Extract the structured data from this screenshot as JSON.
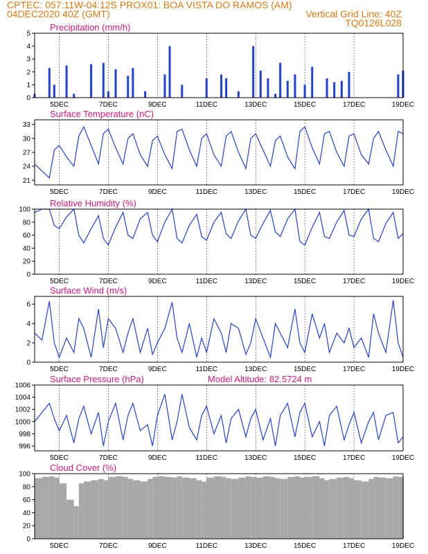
{
  "header": {
    "line1_left": "CPTEC:   057:11W-04:12S   PROX01: BOA VISTA DO RAMOS (AM)",
    "line2_left": "04DEC2020 40Z (GMT)",
    "line2_right": "Vertical Grid Line: 40Z",
    "line3_right": "TQ0126L028"
  },
  "colors": {
    "header": "#e07a10",
    "title": "#e0157a",
    "series": "#1f3fe0",
    "cloud": "#a8a8a8"
  },
  "x_ticks": [
    "5DEC",
    "7DEC",
    "9DEC",
    "11DEC",
    "13DEC",
    "15DEC",
    "17DEC",
    "19DEC"
  ],
  "chart_data": [
    {
      "type": "bar",
      "title": "Precipitation (mm/h)",
      "yticks": [
        "0",
        "1",
        "2",
        "3",
        "4",
        "5"
      ],
      "ylim": [
        0,
        5
      ],
      "x": [
        "4.0DEC",
        "4.3DEC",
        "4.6DEC",
        "4.8DEC",
        "5.0DEC",
        "5.3DEC",
        "5.6DEC",
        "5.8DEC",
        "6.0DEC",
        "6.3DEC",
        "6.5DEC",
        "6.8DEC",
        "7.0DEC",
        "7.3DEC",
        "7.6DEC",
        "7.8DEC",
        "8.0DEC",
        "8.3DEC",
        "8.5DEC",
        "8.8DEC",
        "9.0DEC",
        "9.3DEC",
        "9.5DEC",
        "10.0DEC",
        "10.5DEC",
        "11.0DEC",
        "11.3DEC",
        "11.6DEC",
        "11.8DEC",
        "12.0DEC",
        "12.3DEC",
        "12.6DEC",
        "12.9DEC",
        "13.2DEC",
        "13.5DEC",
        "13.8DEC",
        "14.0DEC",
        "14.3DEC",
        "14.6DEC",
        "15.0DEC",
        "15.3DEC",
        "15.6DEC",
        "15.9DEC",
        "16.2DEC",
        "16.5DEC",
        "16.8DEC",
        "17.0DEC",
        "17.3DEC",
        "17.5DEC",
        "17.8DEC",
        "18.0DEC",
        "18.3DEC",
        "18.5DEC",
        "18.8DEC",
        "19.0DEC"
      ],
      "values": [
        0.3,
        0,
        2.3,
        1.0,
        0,
        2.5,
        0.3,
        0,
        0,
        2.6,
        0,
        2.7,
        0.5,
        2.2,
        0,
        1.7,
        2.3,
        0,
        0.5,
        0,
        0,
        1.8,
        4.0,
        1.0,
        0,
        1.5,
        0,
        1.8,
        1.5,
        0,
        0.5,
        0,
        4.0,
        2.1,
        1.5,
        0.3,
        2.7,
        1.3,
        1.8,
        1.0,
        2.4,
        0,
        1.5,
        1.2,
        1.3,
        2.0,
        0,
        0,
        0,
        0,
        0,
        0,
        0,
        1.8,
        2.1
      ],
      "ylabel": ""
    },
    {
      "type": "line",
      "title": "Surface Temperature (nC)",
      "yticks": [
        "21",
        "24",
        "27",
        "30",
        "33"
      ],
      "ylim": [
        20,
        34
      ],
      "x": [
        4.0,
        4.3,
        4.6,
        4.8,
        5.0,
        5.3,
        5.6,
        5.8,
        6.0,
        6.3,
        6.6,
        6.8,
        7.0,
        7.3,
        7.6,
        7.8,
        8.0,
        8.3,
        8.6,
        8.8,
        9.0,
        9.3,
        9.6,
        9.8,
        10.0,
        10.3,
        10.6,
        10.8,
        11.0,
        11.3,
        11.6,
        11.8,
        12.0,
        12.3,
        12.6,
        12.8,
        13.0,
        13.3,
        13.6,
        13.8,
        14.0,
        14.3,
        14.6,
        14.8,
        15.0,
        15.3,
        15.6,
        15.8,
        16.0,
        16.3,
        16.6,
        16.8,
        17.0,
        17.3,
        17.6,
        17.8,
        18.0,
        18.3,
        18.6,
        18.8,
        19.0
      ],
      "values": [
        24.5,
        23.0,
        21.5,
        27.5,
        28.5,
        26.0,
        24.0,
        30.5,
        32.5,
        28.5,
        24.5,
        31.0,
        32.0,
        28.0,
        24.5,
        30.0,
        31.0,
        26.5,
        24.0,
        29.5,
        30.5,
        26.5,
        23.5,
        31.5,
        32.0,
        27.5,
        24.0,
        30.0,
        31.0,
        26.5,
        24.0,
        30.5,
        31.5,
        27.0,
        23.5,
        30.0,
        31.0,
        27.5,
        24.0,
        29.5,
        30.5,
        26.0,
        23.5,
        31.5,
        32.5,
        28.0,
        24.5,
        31.0,
        31.5,
        27.0,
        24.0,
        30.5,
        31.0,
        26.5,
        24.5,
        30.0,
        31.5,
        27.5,
        24.0,
        31.5,
        31.0
      ],
      "ylabel": ""
    },
    {
      "type": "line",
      "title": "Relative Humidity (%)",
      "yticks": [
        "0",
        "20",
        "40",
        "60",
        "80",
        "100"
      ],
      "ylim": [
        0,
        100
      ],
      "x": [
        4.0,
        4.3,
        4.6,
        4.8,
        5.0,
        5.3,
        5.6,
        5.8,
        6.0,
        6.3,
        6.6,
        6.8,
        7.0,
        7.3,
        7.6,
        7.8,
        8.0,
        8.3,
        8.6,
        8.8,
        9.0,
        9.3,
        9.6,
        9.8,
        10.0,
        10.3,
        10.6,
        10.8,
        11.0,
        11.3,
        11.6,
        11.8,
        12.0,
        12.3,
        12.6,
        12.8,
        13.0,
        13.3,
        13.6,
        13.8,
        14.0,
        14.3,
        14.6,
        14.8,
        15.0,
        15.3,
        15.6,
        15.8,
        16.0,
        16.3,
        16.6,
        16.8,
        17.0,
        17.3,
        17.6,
        17.8,
        18.0,
        18.3,
        18.6,
        18.8,
        19.0
      ],
      "values": [
        95,
        100,
        100,
        75,
        70,
        88,
        100,
        60,
        48,
        70,
        90,
        55,
        45,
        72,
        95,
        60,
        55,
        85,
        95,
        60,
        50,
        80,
        100,
        55,
        48,
        75,
        92,
        58,
        52,
        80,
        95,
        62,
        55,
        82,
        100,
        60,
        55,
        78,
        98,
        65,
        58,
        85,
        100,
        50,
        45,
        72,
        95,
        58,
        55,
        80,
        98,
        60,
        58,
        85,
        100,
        55,
        50,
        78,
        95,
        55,
        62
      ],
      "ylabel": ""
    },
    {
      "type": "line",
      "title": "Surface Wind (m/s)",
      "yticks": [
        "0",
        "2",
        "4",
        "6"
      ],
      "ylim": [
        0,
        6.8
      ],
      "x": [
        4.0,
        4.3,
        4.6,
        4.8,
        5.0,
        5.3,
        5.6,
        5.8,
        6.0,
        6.3,
        6.6,
        6.8,
        7.0,
        7.3,
        7.6,
        7.8,
        8.0,
        8.3,
        8.6,
        8.8,
        9.0,
        9.3,
        9.6,
        9.8,
        10.0,
        10.3,
        10.6,
        10.8,
        11.0,
        11.3,
        11.6,
        11.8,
        12.0,
        12.3,
        12.6,
        12.8,
        13.0,
        13.3,
        13.6,
        13.8,
        14.0,
        14.3,
        14.6,
        14.8,
        15.0,
        15.3,
        15.6,
        15.8,
        16.0,
        16.3,
        16.6,
        16.8,
        17.0,
        17.3,
        17.6,
        17.8,
        18.0,
        18.3,
        18.6,
        18.8,
        19.0
      ],
      "values": [
        3.0,
        2.3,
        6.3,
        2.0,
        0.5,
        2.5,
        1.0,
        4.5,
        3.5,
        0.5,
        5.5,
        1.5,
        4.5,
        3.5,
        1.0,
        3.0,
        4.5,
        1.0,
        3.5,
        0.8,
        2.0,
        3.5,
        6.2,
        2.5,
        1.0,
        4.0,
        0.5,
        2.5,
        1.0,
        4.5,
        3.0,
        1.0,
        4.0,
        3.5,
        0.8,
        2.0,
        4.5,
        2.5,
        0.5,
        4.0,
        3.0,
        1.5,
        5.5,
        2.0,
        1.0,
        5.0,
        2.5,
        4.0,
        1.0,
        3.0,
        2.0,
        3.5,
        1.5,
        2.5,
        0.5,
        5.0,
        3.0,
        1.0,
        6.4,
        2.0,
        0.5
      ],
      "ylabel": ""
    },
    {
      "type": "line",
      "title": "Surface Pressure (hPa)",
      "subtitle": "Model Altitude: 82.5724 m",
      "yticks": [
        "996",
        "998",
        "1000",
        "1002",
        "1004",
        "1006"
      ],
      "ylim": [
        995.2,
        1006
      ],
      "x": [
        4.0,
        4.3,
        4.6,
        4.8,
        5.0,
        5.3,
        5.6,
        5.8,
        6.0,
        6.3,
        6.6,
        6.8,
        7.0,
        7.3,
        7.6,
        7.8,
        8.0,
        8.3,
        8.6,
        8.8,
        9.0,
        9.3,
        9.6,
        9.8,
        10.0,
        10.3,
        10.6,
        10.8,
        11.0,
        11.3,
        11.6,
        11.8,
        12.0,
        12.3,
        12.6,
        12.8,
        13.0,
        13.3,
        13.6,
        13.8,
        14.0,
        14.3,
        14.6,
        14.8,
        15.0,
        15.3,
        15.6,
        15.8,
        16.0,
        16.3,
        16.6,
        16.8,
        17.0,
        17.3,
        17.6,
        17.8,
        18.0,
        18.3,
        18.6,
        18.8,
        19.0
      ],
      "values": [
        1000.0,
        1001.5,
        1003.0,
        1000.5,
        998.5,
        1001.0,
        996.5,
        1000.5,
        1002.5,
        998.0,
        1001.5,
        996.0,
        1000.0,
        1003.0,
        997.0,
        1001.0,
        1003.0,
        998.5,
        999.5,
        996.0,
        1001.0,
        1004.5,
        997.0,
        1000.0,
        1004.5,
        999.0,
        997.0,
        1001.0,
        1002.5,
        998.0,
        1001.0,
        996.5,
        1000.5,
        1002.0,
        997.5,
        1000.5,
        1002.0,
        997.0,
        1000.5,
        996.0,
        1001.0,
        1003.0,
        997.5,
        1001.5,
        1003.0,
        997.5,
        1000.0,
        996.0,
        1001.0,
        1002.5,
        997.0,
        999.5,
        1001.5,
        996.5,
        1000.0,
        1001.5,
        997.0,
        1001.0,
        1001.5,
        996.5,
        997.5
      ],
      "ylabel": ""
    },
    {
      "type": "area",
      "title": "Cloud Cover (%)",
      "yticks": [
        "0",
        "20",
        "40",
        "60",
        "80",
        "100"
      ],
      "ylim": [
        0,
        100
      ],
      "x": [
        4.0,
        4.3,
        4.6,
        4.8,
        5.0,
        5.3,
        5.6,
        5.8,
        6.0,
        6.3,
        6.6,
        6.8,
        7.0,
        7.3,
        7.6,
        7.8,
        8.0,
        8.3,
        8.6,
        8.8,
        9.0,
        9.3,
        9.6,
        9.8,
        10.0,
        10.3,
        10.6,
        10.8,
        11.0,
        11.3,
        11.6,
        11.8,
        12.0,
        12.3,
        12.6,
        12.8,
        13.0,
        13.3,
        13.6,
        13.8,
        14.0,
        14.3,
        14.6,
        14.8,
        15.0,
        15.3,
        15.6,
        15.8,
        16.0,
        16.3,
        16.6,
        16.8,
        17.0,
        17.3,
        17.6,
        17.8,
        18.0,
        18.3,
        18.6,
        18.8,
        19.0
      ],
      "values": [
        93,
        95,
        96,
        94,
        85,
        60,
        50,
        85,
        88,
        90,
        92,
        90,
        95,
        96,
        95,
        92,
        90,
        88,
        92,
        95,
        96,
        95,
        94,
        96,
        94,
        93,
        90,
        88,
        94,
        96,
        95,
        93,
        92,
        94,
        96,
        95,
        94,
        96,
        95,
        93,
        92,
        95,
        96,
        94,
        95,
        96,
        93,
        90,
        92,
        94,
        95,
        93,
        90,
        88,
        92,
        95,
        94,
        93,
        96,
        95,
        94
      ],
      "ylabel": ""
    }
  ]
}
